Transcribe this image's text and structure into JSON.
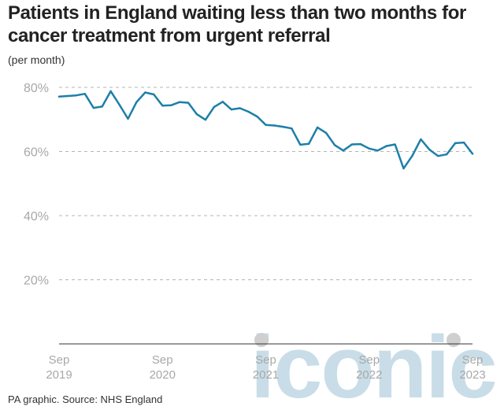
{
  "chart_data": {
    "type": "line",
    "title": "Patients in England waiting less than two months for cancer treatment from urgent referral",
    "unit_label": "(per month)",
    "ylim": [
      0,
      80
    ],
    "yticks": [
      {
        "value": 80,
        "label": "80%"
      },
      {
        "value": 60,
        "label": "60%"
      },
      {
        "value": 40,
        "label": "40%"
      },
      {
        "value": 20,
        "label": "20%"
      }
    ],
    "grid": "horizontal-dashed",
    "x_start": "2019-09",
    "x_end": "2023-09",
    "xticks": [
      {
        "month": "2019-09",
        "line1": "Sep",
        "line2": "2019"
      },
      {
        "month": "2020-09",
        "line1": "Sep",
        "line2": "2020"
      },
      {
        "month": "2021-09",
        "line1": "Sep",
        "line2": "2021"
      },
      {
        "month": "2022-09",
        "line1": "Sep",
        "line2": "2022"
      },
      {
        "month": "2023-09",
        "line1": "Sep",
        "line2": "2023"
      }
    ],
    "series": [
      {
        "color": "#1d7fa8",
        "x": [
          "2019-09",
          "2019-10",
          "2019-11",
          "2019-12",
          "2020-01",
          "2020-02",
          "2020-03",
          "2020-04",
          "2020-05",
          "2020-06",
          "2020-07",
          "2020-08",
          "2020-09",
          "2020-10",
          "2020-11",
          "2020-12",
          "2021-01",
          "2021-02",
          "2021-03",
          "2021-04",
          "2021-05",
          "2021-06",
          "2021-07",
          "2021-08",
          "2021-09",
          "2021-10",
          "2021-11",
          "2021-12",
          "2022-01",
          "2022-02",
          "2022-03",
          "2022-04",
          "2022-05",
          "2022-06",
          "2022-07",
          "2022-08",
          "2022-09",
          "2022-10",
          "2022-11",
          "2022-12",
          "2023-01",
          "2023-02",
          "2023-03",
          "2023-04",
          "2023-05",
          "2023-06",
          "2023-07",
          "2023-08",
          "2023-09"
        ],
        "values": [
          77.1,
          77.3,
          77.5,
          78.0,
          73.6,
          74.0,
          78.8,
          74.6,
          70.2,
          75.4,
          78.4,
          77.8,
          74.3,
          74.4,
          75.4,
          75.2,
          71.6,
          69.9,
          73.9,
          75.5,
          73.1,
          73.5,
          72.4,
          70.9,
          68.3,
          68.1,
          67.7,
          67.2,
          62.1,
          62.4,
          67.5,
          65.8,
          62.0,
          60.3,
          62.2,
          62.3,
          60.9,
          60.3,
          61.7,
          62.2,
          54.7,
          58.6,
          63.8,
          60.6,
          58.6,
          59.1,
          62.6,
          62.8,
          59.3
        ]
      }
    ],
    "source": "PA graphic. Source: NHS England",
    "watermark": "iconic"
  }
}
